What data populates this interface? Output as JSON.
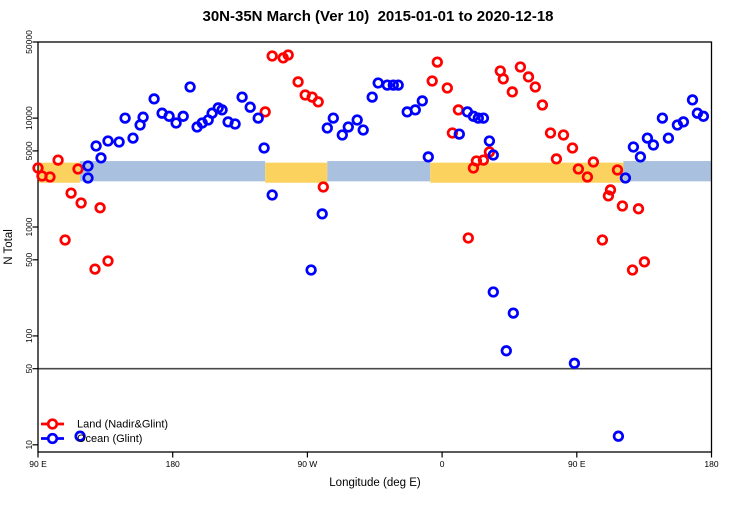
{
  "title": "30N-35N March (Ver 10)  2015-01-01 to 2020-12-18",
  "chart_data": {
    "type": "scatter",
    "title": "30N-35N March (Ver 10)  2015-01-01 to 2020-12-18",
    "xlabel": "Longitude (deg E)",
    "ylabel": "N Total",
    "x_axis": {
      "min": 90,
      "max": 540,
      "ticks": [
        {
          "value": 90,
          "label": "90 E"
        },
        {
          "value": 180,
          "label": "180"
        },
        {
          "value": 270,
          "label": "90 W"
        },
        {
          "value": 360,
          "label": "0"
        },
        {
          "value": 450,
          "label": "90 E"
        },
        {
          "value": 540,
          "label": "180"
        }
      ]
    },
    "y_axis": {
      "scale": "log10",
      "top_value": 50000,
      "bottom_value": 8.6,
      "ticks": [
        "50000",
        "10000",
        "5000",
        "1000",
        "500",
        "100",
        "50",
        "10"
      ]
    },
    "reference_line": {
      "value": 50,
      "color": "#4a4a4a"
    },
    "band": {
      "top_value": 3900,
      "bottom_value": 2550,
      "colors": {
        "land": "#fcd25e",
        "ocean": "#a9c0de"
      },
      "segments": [
        {
          "from": 90,
          "to": 118,
          "color": "#fcd25e"
        },
        {
          "from": 118,
          "to": 241.8,
          "color": "#a9c0de"
        },
        {
          "from": 241.8,
          "to": 283.3,
          "color": "#fcd25e"
        },
        {
          "from": 283.3,
          "to": 352.1,
          "color": "#a9c0de"
        },
        {
          "from": 352.1,
          "to": 481.2,
          "color": "#fcd25e"
        },
        {
          "from": 481.2,
          "to": 540,
          "color": "#a9c0de"
        }
      ]
    },
    "legend": {
      "position": "bottom-left",
      "entries": [
        {
          "label": "Land (Nadir&Glint)",
          "color": "#ff0000"
        },
        {
          "label": "Ocean (Glint)",
          "color": "#0000ff"
        }
      ]
    },
    "series": [
      {
        "name": "Land (Nadir&Glint)",
        "color": "#ff0000",
        "points": [
          [
            90,
            3480
          ],
          [
            92.7,
            2940
          ],
          [
            98,
            2880
          ],
          [
            103.4,
            4120
          ],
          [
            116.7,
            3410
          ],
          [
            112.1,
            2050
          ],
          [
            118.8,
            1660
          ],
          [
            131.5,
            1500
          ],
          [
            108.1,
            760
          ],
          [
            128.1,
            411
          ],
          [
            136.8,
            487
          ],
          [
            241.8,
            11400
          ],
          [
            246.5,
            37200
          ],
          [
            253.8,
            35700
          ],
          [
            257.2,
            38000
          ],
          [
            263.8,
            21500
          ],
          [
            268.5,
            16300
          ],
          [
            273.2,
            15600
          ],
          [
            277.2,
            14100
          ],
          [
            280.6,
            2330
          ],
          [
            353.4,
            21900
          ],
          [
            356.8,
            32700
          ],
          [
            363.5,
            18900
          ],
          [
            366.9,
            7300
          ],
          [
            370.9,
            11900
          ],
          [
            377.5,
            793
          ],
          [
            380.9,
            3480
          ],
          [
            382.9,
            4040
          ],
          [
            387.6,
            4120
          ],
          [
            391.6,
            4890
          ],
          [
            398.9,
            27100
          ],
          [
            400.9,
            22900
          ],
          [
            406.9,
            17400
          ],
          [
            412.3,
            29500
          ],
          [
            417.7,
            23900
          ],
          [
            422.3,
            19300
          ],
          [
            427,
            13200
          ],
          [
            432.4,
            7300
          ],
          [
            436.4,
            4220
          ],
          [
            441.1,
            7000
          ],
          [
            447.1,
            5320
          ],
          [
            451.1,
            3410
          ],
          [
            457.1,
            2880
          ],
          [
            461.1,
            3950
          ],
          [
            467.1,
            760
          ],
          [
            471.1,
            1930
          ],
          [
            472.5,
            2190
          ],
          [
            477.2,
            3340
          ],
          [
            480.5,
            1560
          ],
          [
            487.2,
            403
          ],
          [
            491.2,
            1470
          ],
          [
            495.2,
            478
          ]
        ]
      },
      {
        "name": "Ocean (Glint)",
        "color": "#0000ff",
        "points": [
          [
            123.4,
            3630
          ],
          [
            123.4,
            2820
          ],
          [
            128.8,
            5550
          ],
          [
            132.1,
            4310
          ],
          [
            136.8,
            6170
          ],
          [
            144.2,
            6040
          ],
          [
            148.2,
            10000
          ],
          [
            153.5,
            6560
          ],
          [
            158.2,
            8650
          ],
          [
            160.2,
            10200
          ],
          [
            167.6,
            15000
          ],
          [
            172.9,
            11100
          ],
          [
            177.6,
            10400
          ],
          [
            182.3,
            9020
          ],
          [
            187,
            10400
          ],
          [
            191.6,
            19300
          ],
          [
            196.3,
            8280
          ],
          [
            199.7,
            9020
          ],
          [
            203.7,
            9620
          ],
          [
            206.3,
            11100
          ],
          [
            210.4,
            12400
          ],
          [
            213,
            11900
          ],
          [
            217,
            9230
          ],
          [
            221.7,
            8830
          ],
          [
            226.4,
            15600
          ],
          [
            231.8,
            12600
          ],
          [
            237.1,
            10000
          ],
          [
            241.1,
            5320
          ],
          [
            246.5,
            1970
          ],
          [
            272.5,
            403
          ],
          [
            279.9,
            1320
          ],
          [
            283.3,
            8110
          ],
          [
            287.3,
            10000
          ],
          [
            293.3,
            7000
          ],
          [
            297.3,
            8280
          ],
          [
            303.3,
            9620
          ],
          [
            307.3,
            7780
          ],
          [
            313.3,
            15600
          ],
          [
            317.3,
            21000
          ],
          [
            323.4,
            20100
          ],
          [
            327.4,
            20100
          ],
          [
            330.7,
            20100
          ],
          [
            336.7,
            11400
          ],
          [
            342.1,
            11900
          ],
          [
            346.8,
            14400
          ],
          [
            350.8,
            4400
          ],
          [
            371.5,
            7140
          ],
          [
            376.9,
            11400
          ],
          [
            380.9,
            10400
          ],
          [
            384.2,
            10000
          ],
          [
            387.6,
            10000
          ],
          [
            391.6,
            6170
          ],
          [
            394.2,
            4580
          ],
          [
            394.2,
            253
          ],
          [
            402.9,
            73
          ],
          [
            407.6,
            162
          ],
          [
            448.4,
            56
          ],
          [
            477.8,
            12
          ],
          [
            482.5,
            2820
          ],
          [
            487.8,
            5430
          ],
          [
            492.5,
            4400
          ],
          [
            497.2,
            6560
          ],
          [
            501.2,
            5660
          ],
          [
            507.2,
            10000
          ],
          [
            511.2,
            6560
          ],
          [
            517.2,
            8650
          ],
          [
            521.2,
            9230
          ],
          [
            527.3,
            14700
          ],
          [
            530.6,
            11100
          ],
          [
            534.6,
            10400
          ],
          [
            118.1,
            12
          ]
        ]
      }
    ]
  }
}
